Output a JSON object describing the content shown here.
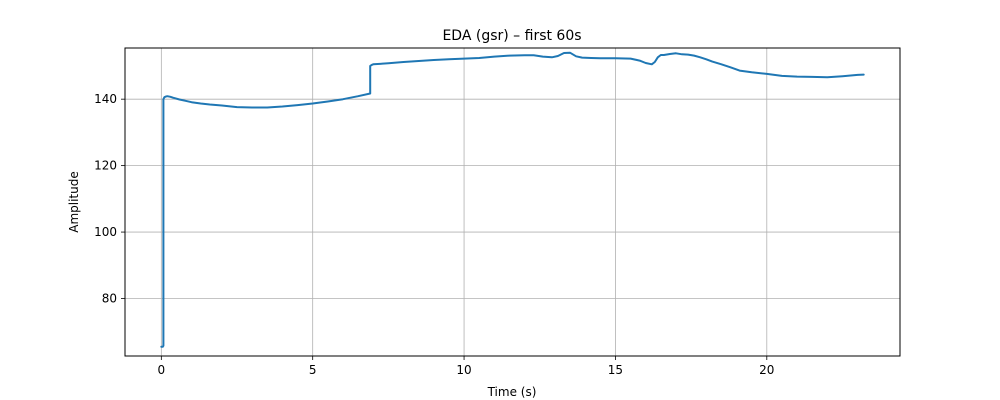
{
  "chart_data": {
    "type": "line",
    "title": "EDA (gsr) – first 60s",
    "xlabel": "Time (s)",
    "ylabel": "Amplitude",
    "xlim": [
      -1.2,
      24.4
    ],
    "ylim": [
      62.7,
      155.4
    ],
    "xticks": [
      0,
      5,
      10,
      15,
      20
    ],
    "yticks": [
      80,
      100,
      120,
      140
    ],
    "xtick_labels": [
      "0",
      "5",
      "10",
      "15",
      "20"
    ],
    "ytick_labels": [
      "80",
      "100",
      "120",
      "140"
    ],
    "grid": true,
    "line_color": "#1f77b4",
    "series": [
      {
        "x": [
          0.0,
          0.05,
          0.07,
          0.07,
          0.1,
          0.15,
          0.2,
          0.3,
          0.4,
          0.6,
          0.8,
          1.0,
          1.3,
          1.6,
          2.0,
          2.5,
          3.0,
          3.5,
          4.0,
          4.5,
          5.0,
          5.5,
          6.0,
          6.5,
          6.9,
          6.9,
          6.95,
          7.0,
          7.5,
          8.0,
          8.5,
          9.0,
          9.5,
          10.0,
          10.5,
          11.0,
          11.5,
          12.0,
          12.3,
          12.6,
          12.9,
          13.1,
          13.3,
          13.5,
          13.7,
          13.9,
          14.2,
          14.5,
          15.0,
          15.5,
          15.8,
          16.0,
          16.2,
          16.3,
          16.4,
          16.5,
          16.6,
          16.8,
          17.0,
          17.2,
          17.4,
          17.6,
          17.8,
          18.0,
          18.2,
          18.5,
          18.8,
          19.1,
          19.5,
          20.0,
          20.5,
          21.0,
          21.5,
          22.0,
          22.5,
          23.0,
          23.2
        ],
        "y": [
          65.5,
          65.5,
          65.8,
          140.0,
          140.6,
          140.8,
          140.9,
          140.7,
          140.4,
          139.9,
          139.5,
          139.1,
          138.7,
          138.4,
          138.1,
          137.6,
          137.5,
          137.5,
          137.8,
          138.2,
          138.7,
          139.3,
          140.0,
          140.9,
          141.7,
          150.0,
          150.3,
          150.5,
          150.8,
          151.2,
          151.5,
          151.8,
          152.0,
          152.2,
          152.4,
          152.8,
          153.1,
          153.2,
          153.2,
          152.8,
          152.6,
          153.0,
          153.9,
          154.0,
          152.9,
          152.5,
          152.4,
          152.3,
          152.3,
          152.2,
          151.6,
          150.9,
          150.5,
          151.2,
          152.6,
          153.3,
          153.3,
          153.6,
          153.8,
          153.5,
          153.4,
          153.1,
          152.6,
          152.0,
          151.3,
          150.5,
          149.6,
          148.6,
          148.1,
          147.6,
          147.0,
          146.8,
          146.7,
          146.6,
          146.9,
          147.3,
          147.4
        ]
      }
    ]
  }
}
